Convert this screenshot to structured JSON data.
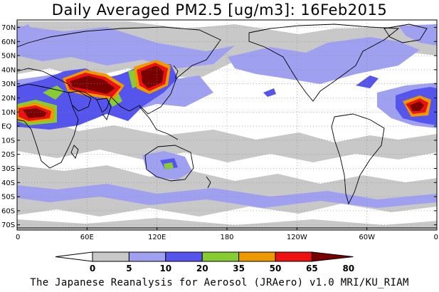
{
  "title": "Daily Averaged PM2.5 [ug/m3]: 16Feb2015",
  "footer": "The Japanese Reanalysis for Aerosol (JRAero) v1.0 MRI/KU_RIAM",
  "map": {
    "lat_labels": [
      "70N",
      "60N",
      "50N",
      "40N",
      "30N",
      "20N",
      "10N",
      "EQ",
      "10S",
      "20S",
      "30S",
      "40S",
      "50S",
      "60S",
      "70S"
    ],
    "lon_labels": [
      "0",
      "60E",
      "120E",
      "180",
      "120W",
      "60W",
      "0"
    ]
  },
  "colorbar": {
    "labels": [
      "0",
      "5",
      "10",
      "20",
      "35",
      "50",
      "65",
      "80"
    ],
    "colors": [
      "#ffffff",
      "#c8c8c8",
      "#a0a0f0",
      "#5555ee",
      "#88cc33",
      "#ee9900",
      "#ee1111",
      "#7a0000"
    ]
  },
  "palette": {
    "white": "#ffffff",
    "gray": "#c8c8c8",
    "lightblue": "#a0a0f0",
    "blue": "#5555ee",
    "green": "#88cc33",
    "orange": "#ee9900",
    "red": "#ee1111",
    "darkred": "#7a0000"
  }
}
